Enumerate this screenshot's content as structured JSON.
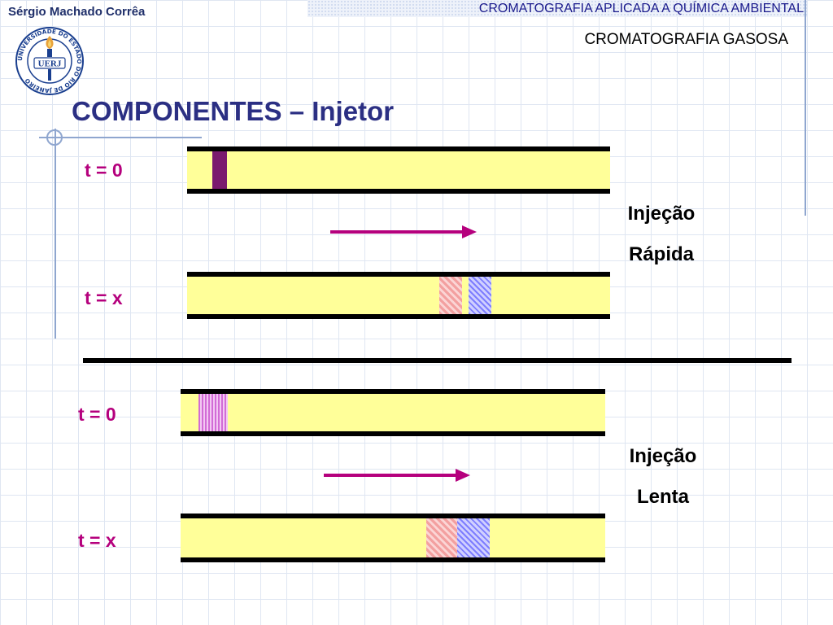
{
  "header": {
    "author": "Sérgio Machado Corrêa",
    "course": "CROMATOGRAFIA APLICADA A QUÍMICA AMBIENTAL",
    "subject": "CROMATOGRAFIA GASOSA"
  },
  "logo": {
    "icon": "uerj-torch-seal-icon",
    "center_text": "UERJ",
    "ring_text": "UNIVERSIDADE DO ESTADO DO RIO DE JANEIRO",
    "colors": {
      "ring": "#1a3f8f",
      "flame": "#e8a23a"
    }
  },
  "title": "COMPONENTES – Injetor",
  "colors": {
    "title": "#2b2f83",
    "time_label": "#b5007d",
    "arrow": "#b5007d",
    "tube_fill": "#ffff99",
    "band_solid": "#7a1a6e",
    "band_red": "#f08080",
    "band_blue": "#6f6fff"
  },
  "fast_injection": {
    "label_line1": "Injeção",
    "label_line2": "Rápida",
    "t0_label": "t = 0",
    "tx_label": "t = x",
    "arrow_icon": "right-arrow-icon"
  },
  "slow_injection": {
    "label_line1": "Injeção",
    "label_line2": "Lenta",
    "t0_label": "t = 0",
    "tx_label": "t = x",
    "arrow_icon": "right-arrow-icon"
  }
}
